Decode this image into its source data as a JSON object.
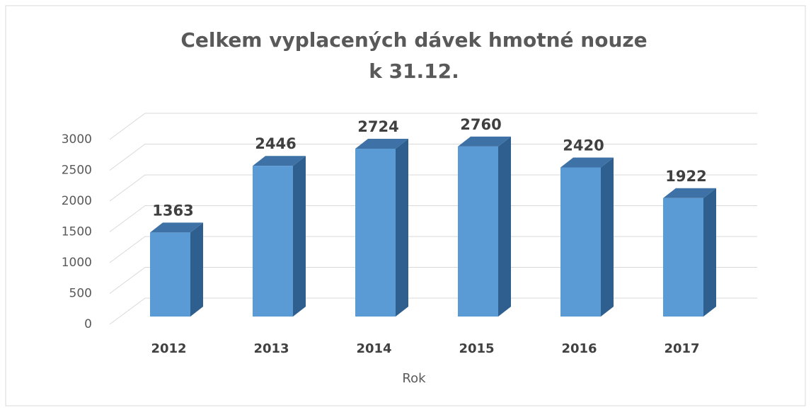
{
  "chart_data": {
    "type": "bar",
    "title": "Celkem vyplacených dávek hmotné nouze",
    "subtitle": "k 31.12.",
    "x_label": "Rok",
    "categories": [
      "2012",
      "2013",
      "2014",
      "2015",
      "2016",
      "2017"
    ],
    "values": [
      1363,
      2446,
      2724,
      2760,
      2420,
      1922
    ],
    "color": "#5b9bd5",
    "ylim": [
      0,
      3000
    ],
    "yticks": [
      0,
      500,
      1000,
      1500,
      2000,
      2500,
      3000
    ],
    "grid": true
  }
}
